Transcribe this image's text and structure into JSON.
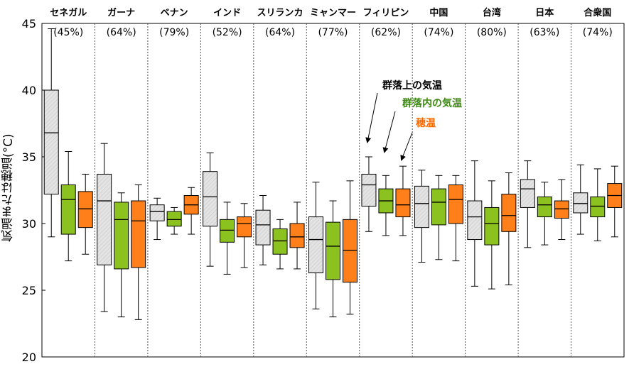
{
  "chart_data": {
    "type": "box",
    "ylabel": "気温または穂温(°C)",
    "ylim": [
      20,
      45
    ],
    "yticks": [
      20,
      25,
      30,
      35,
      40,
      45
    ],
    "grid": false,
    "legend": {
      "placement": "annotation",
      "entries": [
        "群落上の気温",
        "群落内の気温",
        "穂温"
      ]
    },
    "series": [
      {
        "name": "群落上の気温",
        "color": "#d9d9d9"
      },
      {
        "name": "群落内の気温",
        "color": "#8bc220"
      },
      {
        "name": "穂温",
        "color": "#ff7f1a"
      }
    ],
    "categories": [
      {
        "name": "セネガル",
        "pct": "(45%)",
        "boxes": [
          {
            "min": 29.0,
            "q1": 32.2,
            "median": 36.8,
            "q3": 40.0,
            "max": 44.6
          },
          {
            "min": 27.2,
            "q1": 29.2,
            "median": 31.8,
            "q3": 32.9,
            "max": 35.4
          },
          {
            "min": 27.7,
            "q1": 29.7,
            "median": 31.1,
            "q3": 32.4,
            "max": 33.7
          }
        ]
      },
      {
        "name": "ガーナ",
        "pct": "(64%)",
        "boxes": [
          {
            "min": 23.4,
            "q1": 26.9,
            "median": 31.7,
            "q3": 33.7,
            "max": 36.0
          },
          {
            "min": 23.0,
            "q1": 26.6,
            "median": 30.3,
            "q3": 31.6,
            "max": 32.3
          },
          {
            "min": 22.8,
            "q1": 26.7,
            "median": 30.2,
            "q3": 31.7,
            "max": 32.9
          }
        ]
      },
      {
        "name": "ベナン",
        "pct": "(79%)",
        "boxes": [
          {
            "min": 28.8,
            "q1": 30.2,
            "median": 30.9,
            "q3": 31.4,
            "max": 31.9
          },
          {
            "min": 29.2,
            "q1": 29.8,
            "median": 30.3,
            "q3": 30.9,
            "max": 31.2
          },
          {
            "min": 29.2,
            "q1": 30.7,
            "median": 31.4,
            "q3": 32.1,
            "max": 32.7
          }
        ]
      },
      {
        "name": "インド",
        "pct": "(52%)",
        "boxes": [
          {
            "min": 26.8,
            "q1": 29.8,
            "median": 32.0,
            "q3": 33.9,
            "max": 35.3
          },
          {
            "min": 26.2,
            "q1": 28.6,
            "median": 29.5,
            "q3": 30.3,
            "max": 31.6
          },
          {
            "min": 26.7,
            "q1": 29.0,
            "median": 30.0,
            "q3": 30.5,
            "max": 31.5
          }
        ]
      },
      {
        "name": "スリランカ",
        "pct": "(64%)",
        "boxes": [
          {
            "min": 26.9,
            "q1": 28.4,
            "median": 29.9,
            "q3": 31.0,
            "max": 32.1
          },
          {
            "min": 26.6,
            "q1": 27.7,
            "median": 28.7,
            "q3": 29.6,
            "max": 30.3
          },
          {
            "min": 26.6,
            "q1": 28.2,
            "median": 29.0,
            "q3": 30.0,
            "max": 31.6
          }
        ]
      },
      {
        "name": "ミャンマー",
        "pct": "(77%)",
        "boxes": [
          {
            "min": 23.6,
            "q1": 26.3,
            "median": 28.8,
            "q3": 30.5,
            "max": 33.1
          },
          {
            "min": 23.0,
            "q1": 25.8,
            "median": 28.3,
            "q3": 30.1,
            "max": 31.7
          },
          {
            "min": 23.2,
            "q1": 25.6,
            "median": 28.0,
            "q3": 30.3,
            "max": 33.2
          }
        ]
      },
      {
        "name": "フィリピン",
        "pct": "(62%)",
        "boxes": [
          {
            "min": 29.4,
            "q1": 31.3,
            "median": 32.9,
            "q3": 33.7,
            "max": 35.0
          },
          {
            "min": 29.1,
            "q1": 30.8,
            "median": 31.7,
            "q3": 32.6,
            "max": 33.6
          },
          {
            "min": 29.1,
            "q1": 30.5,
            "median": 31.4,
            "q3": 32.6,
            "max": 34.3
          }
        ]
      },
      {
        "name": "中国",
        "pct": "(74%)",
        "boxes": [
          {
            "min": 27.1,
            "q1": 29.7,
            "median": 31.5,
            "q3": 32.8,
            "max": 34.0
          },
          {
            "min": 27.3,
            "q1": 29.9,
            "median": 31.6,
            "q3": 32.6,
            "max": 33.6
          },
          {
            "min": 27.2,
            "q1": 30.0,
            "median": 31.8,
            "q3": 32.9,
            "max": 33.6
          }
        ]
      },
      {
        "name": "台湾",
        "pct": "(80%)",
        "boxes": [
          {
            "min": 25.3,
            "q1": 28.8,
            "median": 30.5,
            "q3": 31.7,
            "max": 34.7
          },
          {
            "min": 25.1,
            "q1": 28.4,
            "median": 30.0,
            "q3": 31.2,
            "max": 33.2
          },
          {
            "min": 25.4,
            "q1": 29.4,
            "median": 30.6,
            "q3": 32.2,
            "max": 33.8
          }
        ]
      },
      {
        "name": "日本",
        "pct": "(63%)",
        "boxes": [
          {
            "min": 28.2,
            "q1": 31.2,
            "median": 32.6,
            "q3": 33.3,
            "max": 34.7
          },
          {
            "min": 28.4,
            "q1": 30.5,
            "median": 31.4,
            "q3": 32.0,
            "max": 33.1
          },
          {
            "min": 28.8,
            "q1": 30.4,
            "median": 31.1,
            "q3": 31.7,
            "max": 33.3
          }
        ]
      },
      {
        "name": "合衆国",
        "pct": "(74%)",
        "boxes": [
          {
            "min": 29.2,
            "q1": 30.8,
            "median": 31.5,
            "q3": 32.3,
            "max": 34.4
          },
          {
            "min": 28.7,
            "q1": 30.5,
            "median": 31.3,
            "q3": 32.0,
            "max": 34.1
          },
          {
            "min": 29.0,
            "q1": 31.2,
            "median": 32.1,
            "q3": 33.0,
            "max": 34.3
          }
        ]
      }
    ]
  }
}
